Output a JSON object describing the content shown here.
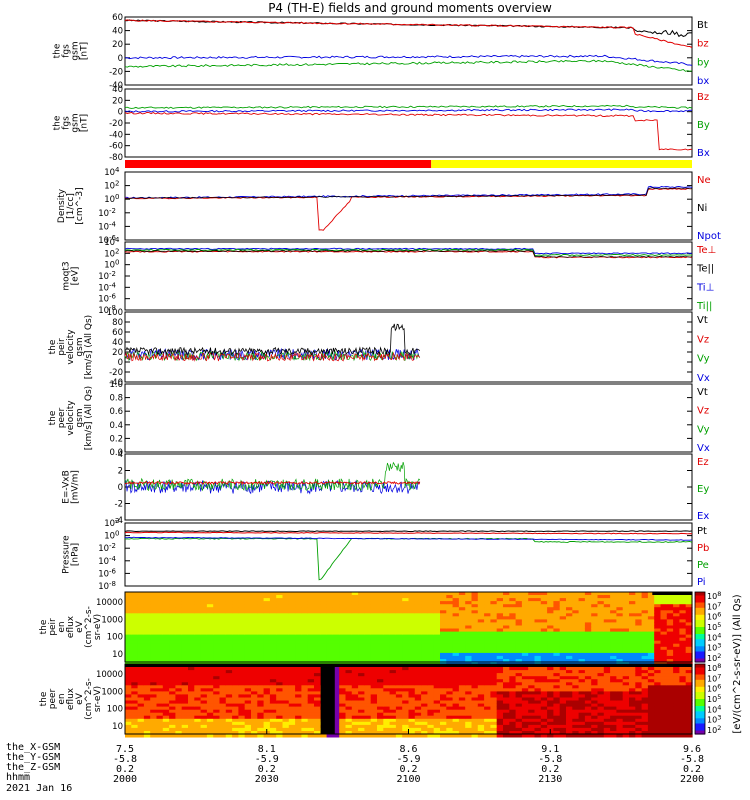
{
  "title": "P4 (TH-E) fields and ground moments overview",
  "footer": {
    "rows": [
      {
        "label": "the_X-GSM",
        "values": [
          "7.5",
          "8.1",
          "8.6",
          "9.1",
          "9.6"
        ]
      },
      {
        "label": "the_Y-GSM",
        "values": [
          "-5.8",
          "-5.9",
          "-5.9",
          "-5.8",
          "-5.8"
        ]
      },
      {
        "label": "the_Z-GSM",
        "values": [
          "0.2",
          "0.2",
          "0.2",
          "0.2",
          "0.2"
        ]
      },
      {
        "label": "hhmm",
        "values": [
          "2000",
          "2030",
          "2100",
          "2130",
          "2200"
        ]
      }
    ],
    "date": "2021 Jan 16"
  },
  "colorbar": {
    "top_ticks": [
      "10^8",
      "10^7",
      "10^6",
      "10^5",
      "10^4",
      "10^3",
      "10^2"
    ],
    "bottom_ticks": [
      "10^8",
      "10^7",
      "10^6",
      "10^5",
      "10^4",
      "10^3",
      "10^2"
    ],
    "label": "[eV/(cm^2-s-sr-eV)] (All Qs)"
  },
  "chart_data": {
    "type": "line",
    "x_axis": {
      "label": "hhmm",
      "ticks": [
        "2000",
        "2030",
        "2100",
        "2130",
        "2200"
      ]
    },
    "panels": [
      {
        "ylabel": [
          "the",
          "fgs",
          "gsm",
          "[nT]"
        ],
        "ylim": [
          -40,
          60
        ],
        "ticks": [
          "60",
          "40",
          "20",
          "0",
          "-20",
          "-40"
        ],
        "legend": [
          {
            "name": "Bt",
            "color": "#000000"
          },
          {
            "name": "bz",
            "color": "#e00000"
          },
          {
            "name": "by",
            "color": "#00a000"
          },
          {
            "name": "bx",
            "color": "#0000e0"
          }
        ]
      },
      {
        "ylabel": [
          "the",
          "fgs",
          "gsm",
          "[nT]"
        ],
        "ylim": [
          -90,
          40
        ],
        "ticks": [
          "40",
          "20",
          "0",
          "-20",
          "-40",
          "-60",
          "-80"
        ],
        "legend": [
          {
            "name": "Bz",
            "color": "#e00000"
          },
          {
            "name": "By",
            "color": "#00a000"
          },
          {
            "name": "Bx",
            "color": "#0000e0"
          }
        ]
      },
      {
        "ylabel": [
          "Density",
          "[1/cc]",
          "[cm^-3]"
        ],
        "ylog": true,
        "ticks": [
          "10^4",
          "10^2",
          "10^0",
          "10^-2",
          "10^-4",
          "10^-6"
        ],
        "legend": [
          {
            "name": "Ne",
            "color": "#e00000"
          },
          {
            "name": "Ni",
            "color": "#000000"
          },
          {
            "name": "Npot",
            "color": "#0000e0"
          }
        ]
      },
      {
        "ylabel": [
          "moqt3",
          "[eV]"
        ],
        "ylog": true,
        "ticks": [
          "10^4",
          "10^2",
          "10^0",
          "10^-2",
          "10^-4",
          "10^-6",
          "10^-8"
        ],
        "legend": [
          {
            "name": "Te⊥",
            "color": "#e00000"
          },
          {
            "name": "Te||",
            "color": "#000000"
          },
          {
            "name": "Ti⊥",
            "color": "#0000e0"
          },
          {
            "name": "Ti||",
            "color": "#00a000"
          }
        ]
      },
      {
        "ylabel": [
          "the",
          "peir",
          "velocity",
          "gsm",
          "[km/s] (All Qs)"
        ],
        "ylim": [
          -40,
          100
        ],
        "ticks": [
          "100",
          "80",
          "60",
          "40",
          "20",
          "0",
          "-20",
          "-40"
        ],
        "legend": [
          {
            "name": "Vt",
            "color": "#000000"
          },
          {
            "name": "Vz",
            "color": "#e00000"
          },
          {
            "name": "Vy",
            "color": "#00a000"
          },
          {
            "name": "Vx",
            "color": "#0000e0"
          }
        ]
      },
      {
        "ylabel": [
          "the",
          "peer",
          "velocity",
          "gsm",
          "[km/s] (All Qs)"
        ],
        "ylim": [
          0,
          1
        ],
        "ticks": [
          "1.0",
          "0.8",
          "0.6",
          "0.4",
          "0.2",
          "0.0"
        ],
        "legend": [
          {
            "name": "Vt",
            "color": "#000000"
          },
          {
            "name": "Vz",
            "color": "#e00000"
          },
          {
            "name": "Vy",
            "color": "#00a000"
          },
          {
            "name": "Vx",
            "color": "#0000e0"
          }
        ]
      },
      {
        "ylabel": [
          "E=-VxB",
          "[mV/m]"
        ],
        "ylim": [
          -4,
          4
        ],
        "ticks": [
          "4",
          "2",
          "0",
          "-2",
          "-4"
        ],
        "legend": [
          {
            "name": "Ez",
            "color": "#e00000"
          },
          {
            "name": "Ey",
            "color": "#00a000"
          },
          {
            "name": "Ex",
            "color": "#0000e0"
          }
        ]
      },
      {
        "ylabel": [
          "Pressure",
          "[nPa]"
        ],
        "ylog": true,
        "ticks": [
          "10^2",
          "10^0",
          "10^-2",
          "10^-4",
          "10^-6",
          "10^-8"
        ],
        "legend": [
          {
            "name": "Pt",
            "color": "#000000"
          },
          {
            "name": "Pb",
            "color": "#e00000"
          },
          {
            "name": "Pe",
            "color": "#00a000"
          },
          {
            "name": "Pi",
            "color": "#0000e0"
          }
        ]
      },
      {
        "type": "heatmap",
        "ylabel": [
          "the",
          "peir",
          "en",
          "eflux",
          "eV",
          "(cm^2-s-",
          "sr-eV)"
        ],
        "ticks": [
          "10000",
          "1000",
          "100",
          "10"
        ]
      },
      {
        "type": "heatmap",
        "ylabel": [
          "the",
          "peer",
          "en",
          "eflux",
          "eV",
          "(cm^2-s-",
          "sr-eV)"
        ],
        "ticks": [
          "10000",
          "1000",
          "100",
          "10"
        ]
      }
    ]
  }
}
